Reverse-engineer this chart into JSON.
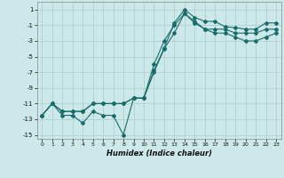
{
  "xlabel": "Humidex (Indice chaleur)",
  "background_color": "#cce8e8",
  "grid_color": "#aacccc",
  "line_color": "#1a6b6b",
  "xlim": [
    -0.5,
    23.5
  ],
  "ylim": [
    -15.5,
    2.0
  ],
  "yticks": [
    1,
    -1,
    -3,
    -5,
    -7,
    -9,
    -11,
    -13,
    -15
  ],
  "xticks": [
    0,
    1,
    2,
    3,
    4,
    5,
    6,
    7,
    8,
    9,
    10,
    11,
    12,
    13,
    14,
    15,
    16,
    17,
    18,
    19,
    20,
    21,
    22,
    23
  ],
  "line1_x": [
    0,
    1,
    2,
    3,
    4,
    5,
    6,
    7,
    8,
    9,
    10,
    11,
    12,
    13,
    14,
    15,
    16,
    17,
    18,
    19,
    20,
    21,
    22,
    23
  ],
  "line1_y": [
    -12.5,
    -11,
    -12.5,
    -12.5,
    -13.5,
    -12,
    -12.5,
    -12.5,
    -15,
    -10.3,
    -10.3,
    -6.8,
    -3.9,
    -0.7,
    1,
    0,
    -0.5,
    -0.5,
    -1.2,
    -1.3,
    -1.5,
    -1.5,
    -0.7,
    -0.7
  ],
  "line2_x": [
    0,
    1,
    2,
    3,
    4,
    5,
    6,
    7,
    8,
    9,
    10,
    11,
    12,
    13,
    14,
    15,
    16,
    17,
    18,
    19,
    20,
    21,
    22,
    23
  ],
  "line2_y": [
    -12.5,
    -11,
    -12,
    -12,
    -12,
    -11,
    -11,
    -11,
    -11,
    -10.3,
    -10.3,
    -7,
    -4,
    -2,
    0.5,
    -0.5,
    -1.5,
    -2,
    -2,
    -2.5,
    -3,
    -3,
    -2.5,
    -2
  ],
  "line3_x": [
    0,
    1,
    2,
    3,
    4,
    5,
    6,
    7,
    8,
    9,
    10,
    11,
    12,
    13,
    14,
    15,
    16,
    17,
    18,
    19,
    20,
    21,
    22,
    23
  ],
  "line3_y": [
    -12.5,
    -11,
    -12,
    -12,
    -12,
    -11,
    -11,
    -11,
    -11,
    -10.3,
    -10.3,
    -6,
    -3,
    -1,
    0.5,
    -0.7,
    -1.5,
    -1.5,
    -1.5,
    -2,
    -2,
    -2,
    -1.5,
    -1.5
  ],
  "figsize": [
    3.2,
    2.0
  ],
  "dpi": 100
}
